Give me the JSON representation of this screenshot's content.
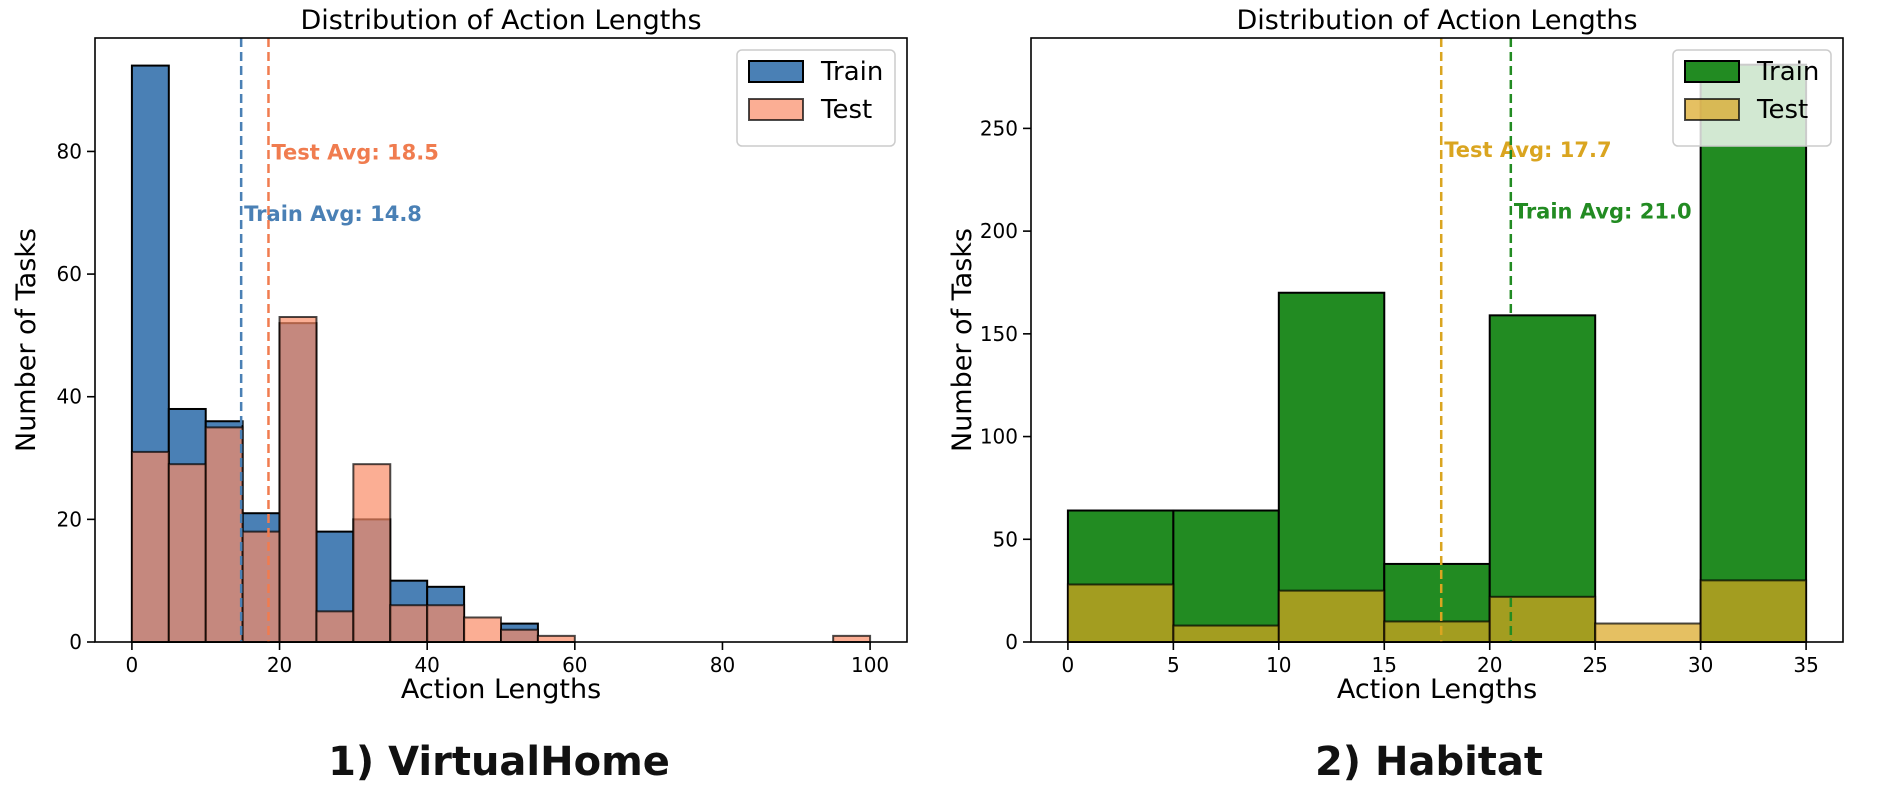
{
  "chart_data": [
    {
      "type": "histogram",
      "title": "Distribution of Action Lengths",
      "xlabel": "Action Lengths",
      "ylabel": "Number of Tasks",
      "xlim": [
        -5,
        105
      ],
      "ylim": [
        0,
        98.5
      ],
      "xticks": [
        0,
        20,
        40,
        60,
        80,
        100
      ],
      "yticks": [
        0,
        20,
        40,
        60,
        80
      ],
      "legend_position": "top-right",
      "series": [
        {
          "name": "Train",
          "color": "#4a80b5",
          "opacity": 1.0,
          "bins": [
            [
              0,
              5,
              94
            ],
            [
              5,
              10,
              38
            ],
            [
              10,
              15,
              36
            ],
            [
              15,
              20,
              21
            ],
            [
              20,
              25,
              52
            ],
            [
              25,
              30,
              18
            ],
            [
              30,
              35,
              20
            ],
            [
              35,
              40,
              10
            ],
            [
              40,
              45,
              9
            ],
            [
              45,
              50,
              0
            ],
            [
              50,
              55,
              3
            ]
          ]
        },
        {
          "name": "Test",
          "color": "#fa8c66",
          "opacity": 0.7,
          "bins": [
            [
              0,
              5,
              31
            ],
            [
              5,
              10,
              29
            ],
            [
              10,
              15,
              35
            ],
            [
              15,
              20,
              18
            ],
            [
              20,
              25,
              53
            ],
            [
              25,
              30,
              5
            ],
            [
              30,
              35,
              29
            ],
            [
              35,
              40,
              6
            ],
            [
              40,
              45,
              6
            ],
            [
              45,
              50,
              4
            ],
            [
              50,
              55,
              2
            ],
            [
              55,
              60,
              1
            ],
            [
              95,
              100,
              1
            ]
          ]
        }
      ],
      "averages": [
        {
          "label": "Train Avg: 14.8",
          "value": 14.8,
          "color": "#4a80b5",
          "text_y": 70
        },
        {
          "label": "Test Avg: 18.5",
          "value": 18.5,
          "color": "#f07c4f",
          "text_y": 80
        }
      ]
    },
    {
      "type": "histogram",
      "title": "Distribution of Action Lengths",
      "xlabel": "Action Lengths",
      "ylabel": "Number of Tasks",
      "xlim": [
        -1.75,
        36.75
      ],
      "ylim": [
        0,
        294
      ],
      "xticks": [
        0,
        5,
        10,
        15,
        20,
        25,
        30,
        35
      ],
      "yticks": [
        0,
        50,
        100,
        150,
        200,
        250
      ],
      "legend_position": "top-right",
      "series": [
        {
          "name": "Train",
          "color": "#228b22",
          "opacity": 1.0,
          "bins": [
            [
              0,
              5,
              64
            ],
            [
              5,
              10,
              64
            ],
            [
              10,
              15,
              170
            ],
            [
              15,
              20,
              38
            ],
            [
              20,
              25,
              159
            ],
            [
              25,
              30,
              0
            ],
            [
              30,
              35,
              281
            ]
          ]
        },
        {
          "name": "Test",
          "color": "#daa520",
          "opacity": 0.7,
          "bins": [
            [
              0,
              5,
              28
            ],
            [
              5,
              10,
              8
            ],
            [
              10,
              15,
              25
            ],
            [
              15,
              20,
              10
            ],
            [
              20,
              25,
              22
            ],
            [
              25,
              30,
              9
            ],
            [
              30,
              35,
              30
            ]
          ]
        }
      ],
      "averages": [
        {
          "label": "Test Avg: 17.7",
          "value": 17.7,
          "color": "#daa520",
          "text_y": 240
        },
        {
          "label": "Train Avg: 21.0",
          "value": 21.0,
          "color": "#228b22",
          "text_y": 210
        }
      ]
    }
  ],
  "captions": {
    "left": "1) VirtualHome",
    "right": "2) Habitat"
  }
}
